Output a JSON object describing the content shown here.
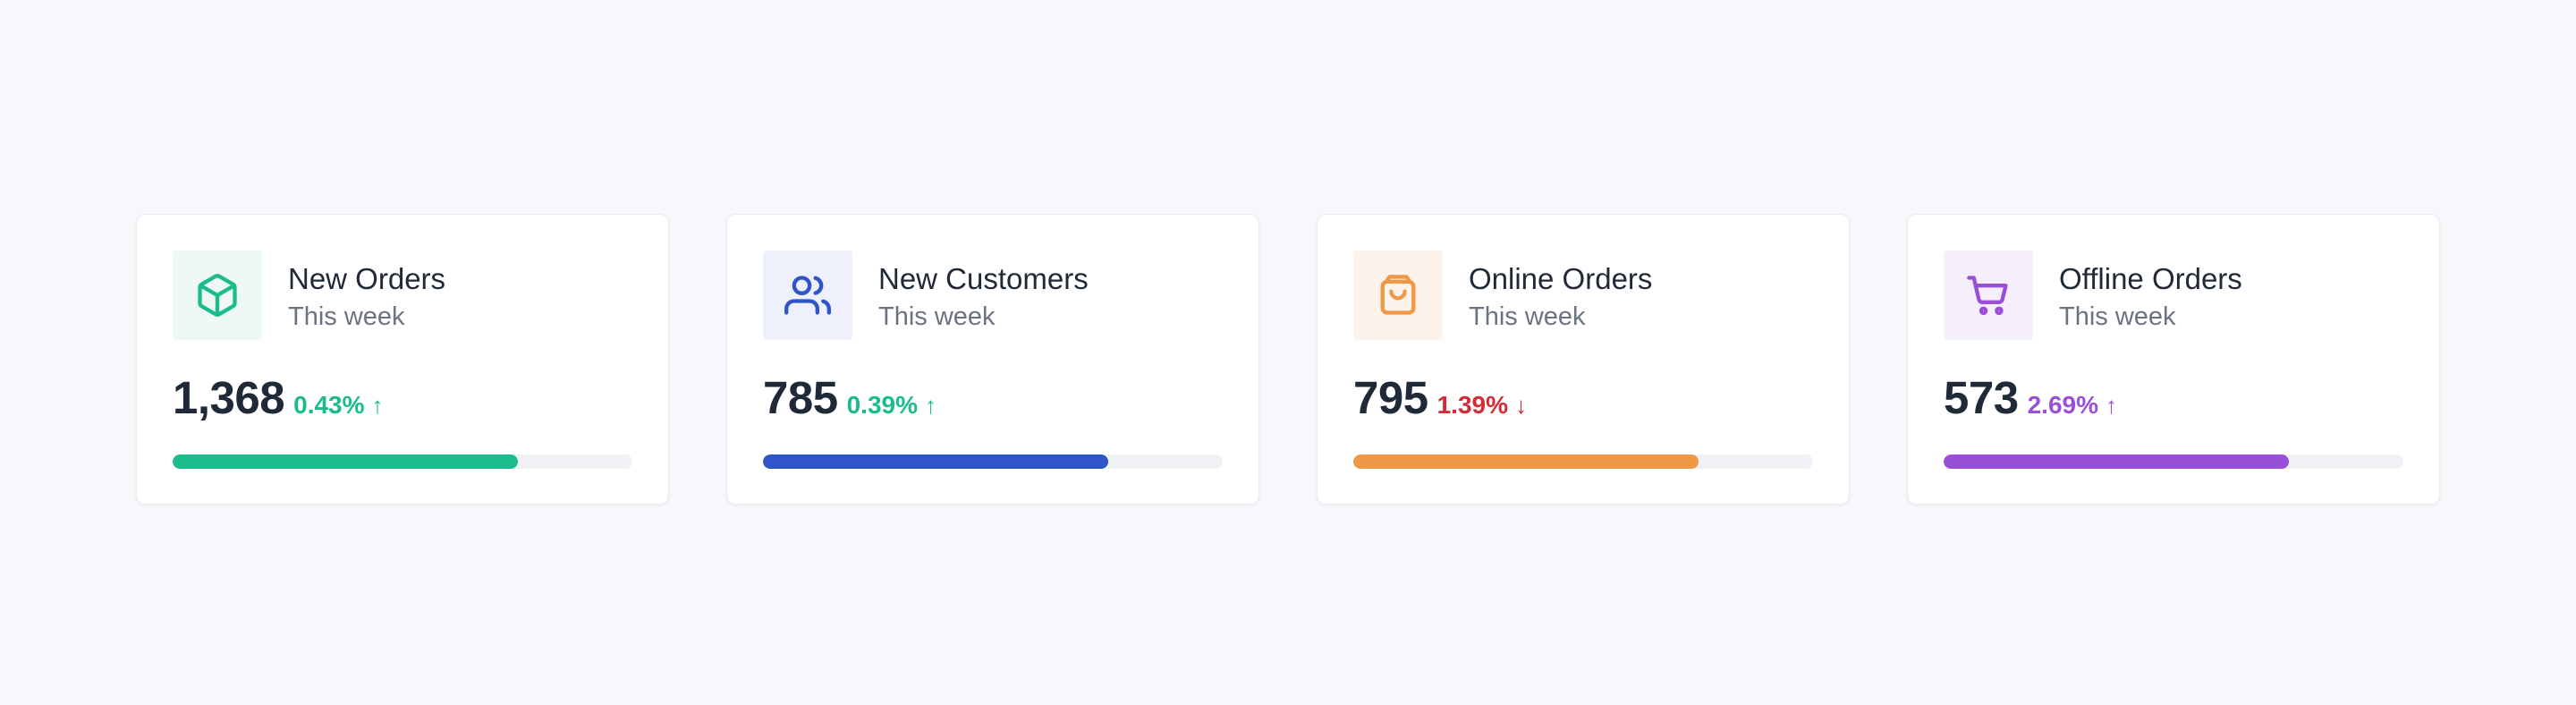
{
  "cards": [
    {
      "title": "New Orders",
      "subtitle": "This week",
      "value": "1,368",
      "delta": "0.43%",
      "trend": "up",
      "trend_arrow": "↑",
      "icon": "box-icon",
      "accent": "#1abc8c",
      "icon_bg": "#eef8f4",
      "delta_color": "#1abc8c",
      "progress": 0.75
    },
    {
      "title": "New Customers",
      "subtitle": "This week",
      "value": "785",
      "delta": "0.39%",
      "trend": "up",
      "trend_arrow": "↑",
      "icon": "users-icon",
      "accent": "#2f55c8",
      "icon_bg": "#eef1fb",
      "delta_color": "#1abc8c",
      "progress": 0.75
    },
    {
      "title": "Online Orders",
      "subtitle": "This week",
      "value": "795",
      "delta": "1.39%",
      "trend": "down",
      "trend_arrow": "↓",
      "icon": "shopping-bag-icon",
      "accent": "#ef9846",
      "icon_bg": "#fdf3ea",
      "delta_color": "#d42b35",
      "progress": 0.75
    },
    {
      "title": "Offline Orders",
      "subtitle": "This week",
      "value": "573",
      "delta": "2.69%",
      "trend": "up",
      "trend_arrow": "↑",
      "icon": "shopping-cart-icon",
      "accent": "#9a4fd9",
      "icon_bg": "#f5effc",
      "delta_color": "#9a4fd9",
      "progress": 0.75
    }
  ]
}
